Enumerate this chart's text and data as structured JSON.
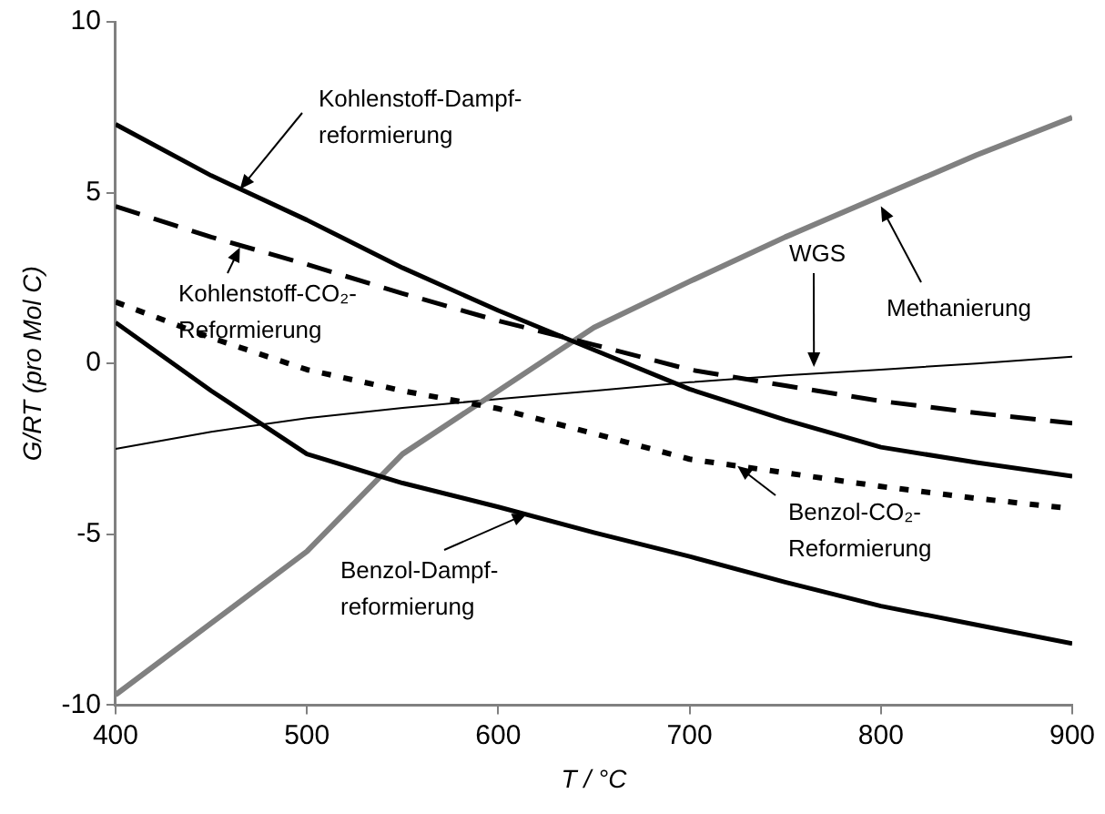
{
  "chart_data": {
    "type": "line",
    "xlabel": "T / °C",
    "ylabel": "G/RT (pro Mol C)",
    "x": [
      400,
      450,
      500,
      550,
      600,
      650,
      700,
      750,
      800,
      850,
      900
    ],
    "series": [
      {
        "color": "#000000",
        "line_style": "solid",
        "values": [
          7.0,
          5.5,
          4.2,
          2.8,
          1.55,
          0.4,
          -0.75,
          -1.65,
          -2.45,
          -2.9,
          -3.3
        ]
      },
      {
        "color": "#000000",
        "line_style": "dashed",
        "values": [
          4.6,
          3.7,
          2.9,
          2.05,
          1.25,
          0.55,
          -0.18,
          -0.65,
          -1.1,
          -1.45,
          -1.75
        ]
      },
      {
        "color": "#000000",
        "line_style": "dotted",
        "values": [
          1.8,
          0.75,
          -0.18,
          -0.8,
          -1.32,
          -2.05,
          -2.8,
          -3.2,
          -3.6,
          -3.95,
          -4.25
        ]
      },
      {
        "color": "#000000",
        "line_style": "solid",
        "values": [
          1.2,
          -0.8,
          -2.65,
          -3.5,
          -4.2,
          -4.95,
          -5.65,
          -6.4,
          -7.1,
          -7.65,
          -8.2
        ]
      },
      {
        "color": "#808080",
        "line_style": "solid",
        "values": [
          -9.7,
          -7.6,
          -5.5,
          -2.65,
          -0.8,
          1.05,
          2.4,
          3.7,
          4.9,
          6.1,
          7.2
        ]
      },
      {
        "color": "#000000",
        "line_style": "solid",
        "values": [
          -2.5,
          -2.0,
          -1.6,
          -1.3,
          -1.04,
          -0.8,
          -0.55,
          -0.35,
          -0.18,
          0.0,
          0.2
        ]
      }
    ],
    "annotations": [
      {
        "text": "Kohlenstoff-Dampf-reformierung",
        "x": 465,
        "y": 5.1
      },
      {
        "text": "Kohlenstoff-CO₂-Reformierung",
        "x": 465,
        "y": 3.4
      },
      {
        "text": "Benzol-CO₂-Reformierung",
        "x": 725,
        "y": -3.0
      },
      {
        "text": "Benzol-Dampf-reformierung",
        "x": 615,
        "y": -4.4
      },
      {
        "text": "Methanierung",
        "x": 800,
        "y": 4.6
      },
      {
        "text": "WGS",
        "x": 765,
        "y": -0.1
      }
    ],
    "xlim": [
      400,
      900
    ],
    "xticks": [
      400,
      500,
      600,
      700,
      800,
      900
    ],
    "ylim": [
      -10,
      10
    ],
    "yticks": [
      -10,
      -5,
      0,
      5,
      10
    ],
    "grid": false,
    "legend": false,
    "marker": "none"
  }
}
